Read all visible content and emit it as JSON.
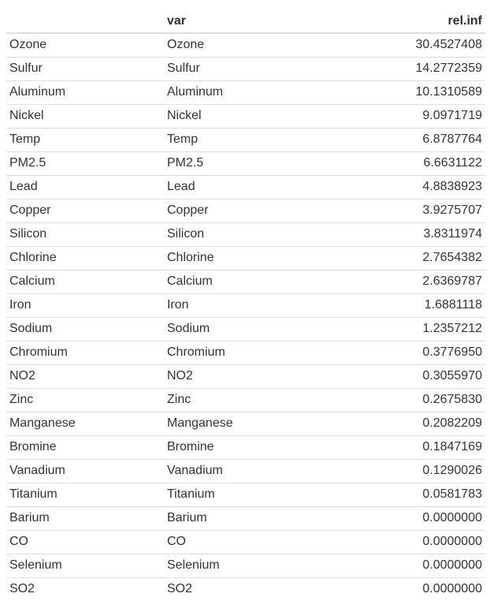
{
  "table": {
    "headers": [
      "",
      "var",
      "rel.inf"
    ],
    "rows": [
      [
        "Ozone",
        "Ozone",
        "30.4527408"
      ],
      [
        "Sulfur",
        "Sulfur",
        "14.2772359"
      ],
      [
        "Aluminum",
        "Aluminum",
        "10.1310589"
      ],
      [
        "Nickel",
        "Nickel",
        "9.0971719"
      ],
      [
        "Temp",
        "Temp",
        "6.8787764"
      ],
      [
        "PM2.5",
        "PM2.5",
        "6.6631122"
      ],
      [
        "Lead",
        "Lead",
        "4.8838923"
      ],
      [
        "Copper",
        "Copper",
        "3.9275707"
      ],
      [
        "Silicon",
        "Silicon",
        "3.8311974"
      ],
      [
        "Chlorine",
        "Chlorine",
        "2.7654382"
      ],
      [
        "Calcium",
        "Calcium",
        "2.6369787"
      ],
      [
        "Iron",
        "Iron",
        "1.6881118"
      ],
      [
        "Sodium",
        "Sodium",
        "1.2357212"
      ],
      [
        "Chromium",
        "Chromium",
        "0.3776950"
      ],
      [
        "NO2",
        "NO2",
        "0.3055970"
      ],
      [
        "Zinc",
        "Zinc",
        "0.2675830"
      ],
      [
        "Manganese",
        "Manganese",
        "0.2082209"
      ],
      [
        "Bromine",
        "Bromine",
        "0.1847169"
      ],
      [
        "Vanadium",
        "Vanadium",
        "0.1290026"
      ],
      [
        "Titanium",
        "Titanium",
        "0.0581783"
      ],
      [
        "Barium",
        "Barium",
        "0.0000000"
      ],
      [
        "CO",
        "CO",
        "0.0000000"
      ],
      [
        "Selenium",
        "Selenium",
        "0.0000000"
      ],
      [
        "SO2",
        "SO2",
        "0.0000000"
      ]
    ]
  }
}
